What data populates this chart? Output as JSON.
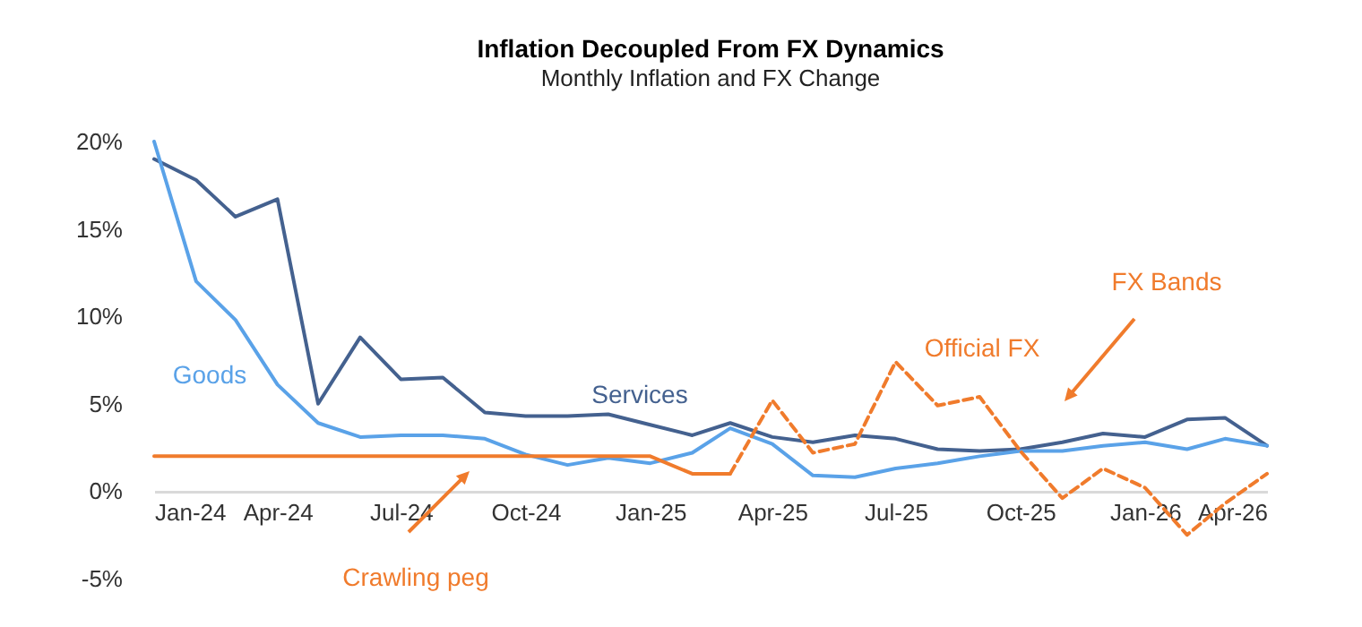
{
  "chart_data": {
    "type": "line",
    "title": "Inflation Decoupled From FX Dynamics",
    "subtitle": "Monthly Inflation and FX Change",
    "x": [
      "2024-01",
      "2024-02",
      "2024-03",
      "2024-04",
      "2024-05",
      "2024-06",
      "2024-07",
      "2024-08",
      "2024-09",
      "2024-10",
      "2024-11",
      "2024-12",
      "2025-01",
      "2025-02",
      "2025-03",
      "2025-04",
      "2025-05",
      "2025-06",
      "2025-07",
      "2025-08",
      "2025-09",
      "2025-10",
      "2025-11",
      "2025-12",
      "2026-01",
      "2026-02",
      "2026-03",
      "2026-04"
    ],
    "series": [
      {
        "name": "Services",
        "color": "#44618f",
        "line_style": "solid",
        "values": [
          19.0,
          17.8,
          15.7,
          16.7,
          5.0,
          8.8,
          6.4,
          6.5,
          4.5,
          4.3,
          4.3,
          4.4,
          3.8,
          3.2,
          3.9,
          3.1,
          2.8,
          3.2,
          3.0,
          2.4,
          2.3,
          2.4,
          2.8,
          3.3,
          3.1,
          4.1,
          4.2,
          2.6
        ]
      },
      {
        "name": "Goods",
        "color": "#5aa2e8",
        "line_style": "solid",
        "values": [
          20.0,
          12.0,
          9.8,
          6.1,
          3.9,
          3.1,
          3.2,
          3.2,
          3.0,
          2.1,
          1.5,
          1.9,
          1.6,
          2.2,
          3.6,
          2.7,
          0.9,
          0.8,
          1.3,
          1.6,
          2.0,
          2.3,
          2.3,
          2.6,
          2.8,
          2.4,
          3.0,
          2.6
        ]
      },
      {
        "color": "#f07b2c",
        "line_style": "solid",
        "values": [
          2.0,
          2.0,
          2.0,
          2.0,
          2.0,
          2.0,
          2.0,
          2.0,
          2.0,
          2.0,
          2.0,
          2.0,
          2.0,
          1.0,
          1.0,
          null,
          null,
          null,
          null,
          null,
          null,
          null,
          null,
          null,
          null,
          null,
          null,
          null
        ]
      },
      {
        "name": "Official FX",
        "color": "#f07b2c",
        "line_style": "dashed",
        "values": [
          null,
          null,
          null,
          null,
          null,
          null,
          null,
          null,
          null,
          null,
          null,
          null,
          null,
          null,
          1.0,
          5.2,
          2.2,
          2.7,
          7.4,
          4.9,
          5.4,
          2.3,
          -0.4,
          1.3,
          0.2,
          -2.5,
          -0.7,
          1.0
        ]
      }
    ],
    "xlim": [
      "2024-01",
      "2026-04"
    ],
    "xticks": [
      {
        "value": "2024-01",
        "label": "Jan-24"
      },
      {
        "value": "2024-04",
        "label": "Apr-24"
      },
      {
        "value": "2024-07",
        "label": "Jul-24"
      },
      {
        "value": "2024-10",
        "label": "Oct-24"
      },
      {
        "value": "2025-01",
        "label": "Jan-25"
      },
      {
        "value": "2025-04",
        "label": "Apr-25"
      },
      {
        "value": "2025-07",
        "label": "Jul-25"
      },
      {
        "value": "2025-10",
        "label": "Oct-25"
      },
      {
        "value": "2026-01",
        "label": "Jan-26"
      },
      {
        "value": "2026-04",
        "label": "Apr-26"
      }
    ],
    "ylim": [
      -5,
      20
    ],
    "yticks": [
      {
        "value": -5,
        "label": "-5%"
      },
      {
        "value": 0,
        "label": "0%"
      },
      {
        "value": 5,
        "label": "5%"
      },
      {
        "value": 10,
        "label": "10%"
      },
      {
        "value": 15,
        "label": "15%"
      },
      {
        "value": 20,
        "label": "20%"
      }
    ],
    "marker": "none",
    "annotations": [
      "Crawling peg",
      "FX Bands"
    ]
  }
}
